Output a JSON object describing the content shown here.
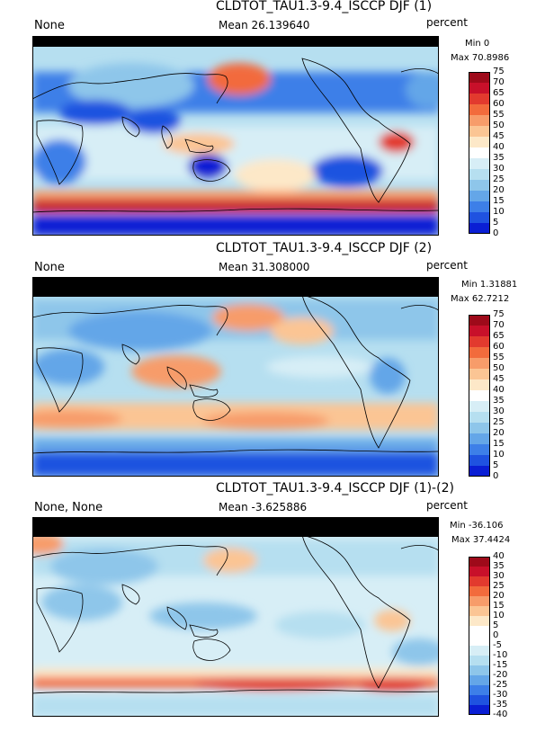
{
  "chart_data": [
    {
      "type": "heatmap",
      "title": "CLDTOT_TAU1.3-9.4_ISCCP DJF (1)",
      "left_label": "None",
      "mean_text": "Mean 26.139640",
      "units": "percent",
      "min_text": "Min 0",
      "max_text": "Max 70.8986",
      "colorbar_ticks": [
        "75",
        "70",
        "65",
        "60",
        "55",
        "50",
        "45",
        "40",
        "35",
        "30",
        "25",
        "20",
        "15",
        "10",
        "5",
        "0"
      ],
      "colorbar_colors": [
        "#9e0a1a",
        "#c8102a",
        "#e23a2e",
        "#f26b3c",
        "#f79c6a",
        "#fbc594",
        "#fde8c8",
        "#ffffff",
        "#d7eef6",
        "#b6dff0",
        "#8ec6ea",
        "#64a6e8",
        "#3d7fe8",
        "#1f52e0",
        "#0a1ed4"
      ]
    },
    {
      "type": "heatmap",
      "title": "CLDTOT_TAU1.3-9.4_ISCCP DJF (2)",
      "left_label": "None",
      "mean_text": "Mean 31.308000",
      "units": "percent",
      "min_text": "Min 1.31881",
      "max_text": "Max 62.7212",
      "colorbar_ticks": [
        "75",
        "70",
        "65",
        "60",
        "55",
        "50",
        "45",
        "40",
        "35",
        "30",
        "25",
        "20",
        "15",
        "10",
        "5",
        "0"
      ],
      "colorbar_colors": [
        "#9e0a1a",
        "#c8102a",
        "#e23a2e",
        "#f26b3c",
        "#f79c6a",
        "#fbc594",
        "#fde8c8",
        "#ffffff",
        "#d7eef6",
        "#b6dff0",
        "#8ec6ea",
        "#64a6e8",
        "#3d7fe8",
        "#1f52e0",
        "#0a1ed4"
      ]
    },
    {
      "type": "heatmap",
      "title": "CLDTOT_TAU1.3-9.4_ISCCP DJF (1)-(2)",
      "left_label": "None, None",
      "mean_text": "Mean -3.625886",
      "units": "percent",
      "min_text": "Min -36.106",
      "max_text": "Max 37.4424",
      "colorbar_ticks": [
        "40",
        "35",
        "30",
        "25",
        "20",
        "15",
        "10",
        "5",
        "0",
        "-5",
        "-10",
        "-15",
        "-20",
        "-25",
        "-30",
        "-35",
        "-40"
      ],
      "colorbar_colors": [
        "#9e0a1a",
        "#c8102a",
        "#e23a2e",
        "#f26b3c",
        "#f79c6a",
        "#fbc594",
        "#fde8c8",
        "#ffffff",
        "#ffffff",
        "#d7eef6",
        "#b6dff0",
        "#8ec6ea",
        "#64a6e8",
        "#3d7fe8",
        "#1f52e0",
        "#0a1ed4"
      ]
    }
  ],
  "colors": {
    "polar_missing": "#000000",
    "deep_blue": "#0a1ed4",
    "mid_blue": "#64a6e8",
    "light_blue": "#b6dff0",
    "cream": "#fde8c8",
    "orange": "#f79c6a",
    "red": "#c8102a"
  }
}
